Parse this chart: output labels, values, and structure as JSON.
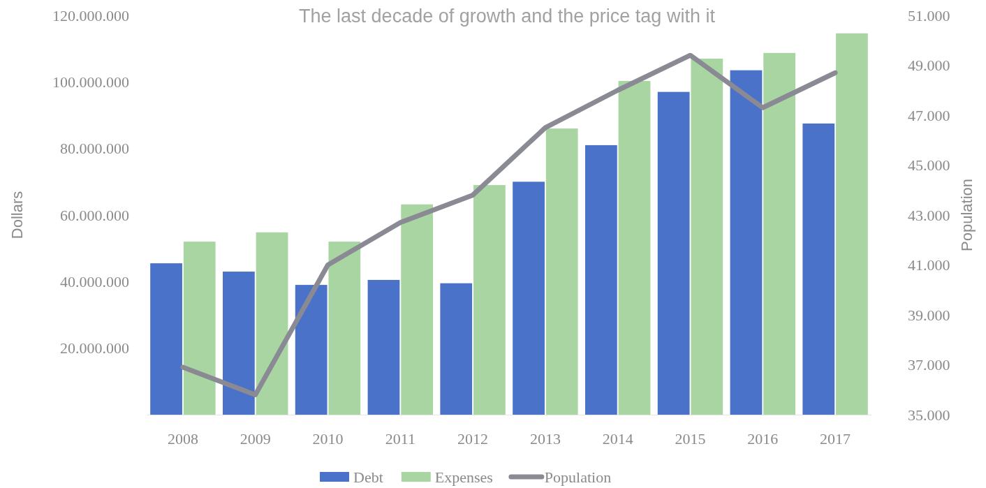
{
  "chart_data": {
    "type": "bar",
    "title": "The last decade of growth and the price tag with it",
    "ylabel": "Dollars",
    "y2label": "Population",
    "categories": [
      "2008",
      "2009",
      "2010",
      "2011",
      "2012",
      "2013",
      "2014",
      "2015",
      "2016",
      "2017"
    ],
    "series": [
      {
        "name": "Debt",
        "color": "#4a72c8",
        "values": [
          45500000,
          43000000,
          39000000,
          40500000,
          39500000,
          70000000,
          81000000,
          97000000,
          103500000,
          87500000
        ]
      },
      {
        "name": "Expenses",
        "color": "#a8d5a2",
        "values": [
          52000000,
          54800000,
          52000000,
          63200000,
          69000000,
          86000000,
          100300000,
          107000000,
          108700000,
          114600000
        ]
      },
      {
        "name": "Population",
        "type": "line",
        "axis": "y2",
        "color": "#8a8a95",
        "values": [
          36900,
          35800,
          41000,
          42700,
          43800,
          46500,
          48000,
          49400,
          47300,
          48700
        ]
      }
    ],
    "ylim": [
      0,
      120000000
    ],
    "yticks": [
      {
        "value": 20000000,
        "label": "20.000.000"
      },
      {
        "value": 40000000,
        "label": "40.000.000"
      },
      {
        "value": 60000000,
        "label": "60.000.000"
      },
      {
        "value": 80000000,
        "label": "80.000.000"
      },
      {
        "value": 100000000,
        "label": "100.000.000"
      },
      {
        "value": 120000000,
        "label": "120.000.000"
      }
    ],
    "y2lim": [
      35000,
      51000
    ],
    "y2ticks": [
      {
        "value": 35000,
        "label": "35.000"
      },
      {
        "value": 37000,
        "label": "37.000"
      },
      {
        "value": 39000,
        "label": "39.000"
      },
      {
        "value": 41000,
        "label": "41.000"
      },
      {
        "value": 43000,
        "label": "43.000"
      },
      {
        "value": 45000,
        "label": "45.000"
      },
      {
        "value": 47000,
        "label": "47.000"
      },
      {
        "value": 49000,
        "label": "49.000"
      },
      {
        "value": 51000,
        "label": "51.000"
      }
    ],
    "legend": "bottom",
    "grid": false,
    "marker": "none",
    "line_style": "solid"
  }
}
